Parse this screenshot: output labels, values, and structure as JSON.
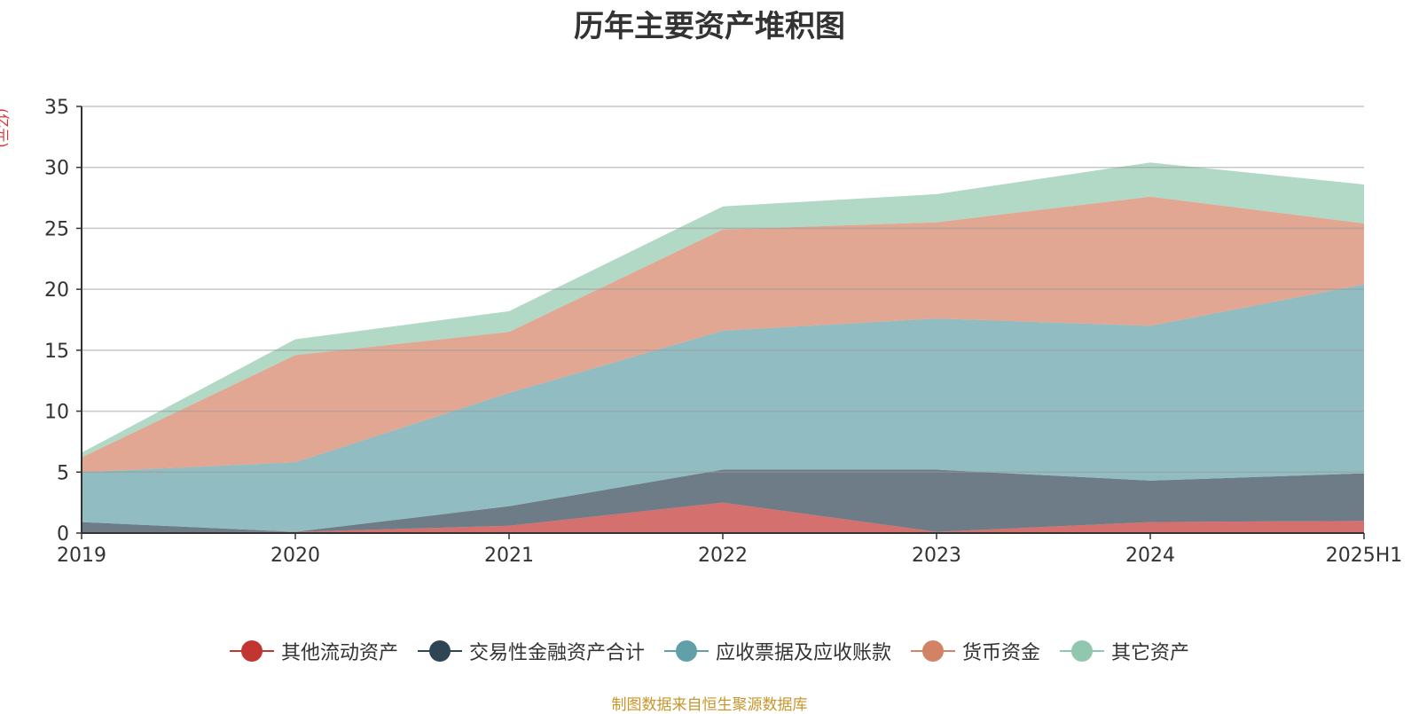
{
  "title": "历年主要资产堆积图",
  "unit_label": "(亿元)",
  "source": "制图数据来自恒生聚源数据库",
  "chart_data": {
    "type": "area",
    "stacked": true,
    "title": "历年主要资产堆积图",
    "ylabel": "(亿元)",
    "xlabel": "",
    "categories": [
      "2019",
      "2020",
      "2021",
      "2022",
      "2023",
      "2024",
      "2025H1"
    ],
    "ylim": [
      0,
      35
    ],
    "yticks": [
      0,
      5,
      10,
      15,
      20,
      25,
      30,
      35
    ],
    "grid": true,
    "legend_position": "bottom",
    "series": [
      {
        "name": "其他流动资产",
        "color": "#c23531",
        "values": [
          0.0,
          0.1,
          0.6,
          2.5,
          0.1,
          0.9,
          1.0
        ]
      },
      {
        "name": "交易性金融资产合计",
        "color": "#2f4554",
        "values": [
          0.9,
          0.0,
          1.6,
          2.7,
          5.1,
          3.4,
          3.9
        ]
      },
      {
        "name": "应收票据及应收账款",
        "color": "#61a0a8",
        "values": [
          4.1,
          5.7,
          9.3,
          11.4,
          12.4,
          12.7,
          15.5
        ]
      },
      {
        "name": "货币资金",
        "color": "#d48265",
        "values": [
          1.2,
          8.8,
          5.0,
          8.3,
          7.9,
          10.6,
          5.0
        ]
      },
      {
        "name": "其它资产",
        "color": "#91c7ae",
        "values": [
          0.4,
          1.3,
          1.7,
          1.9,
          2.3,
          2.8,
          3.2
        ]
      }
    ]
  }
}
